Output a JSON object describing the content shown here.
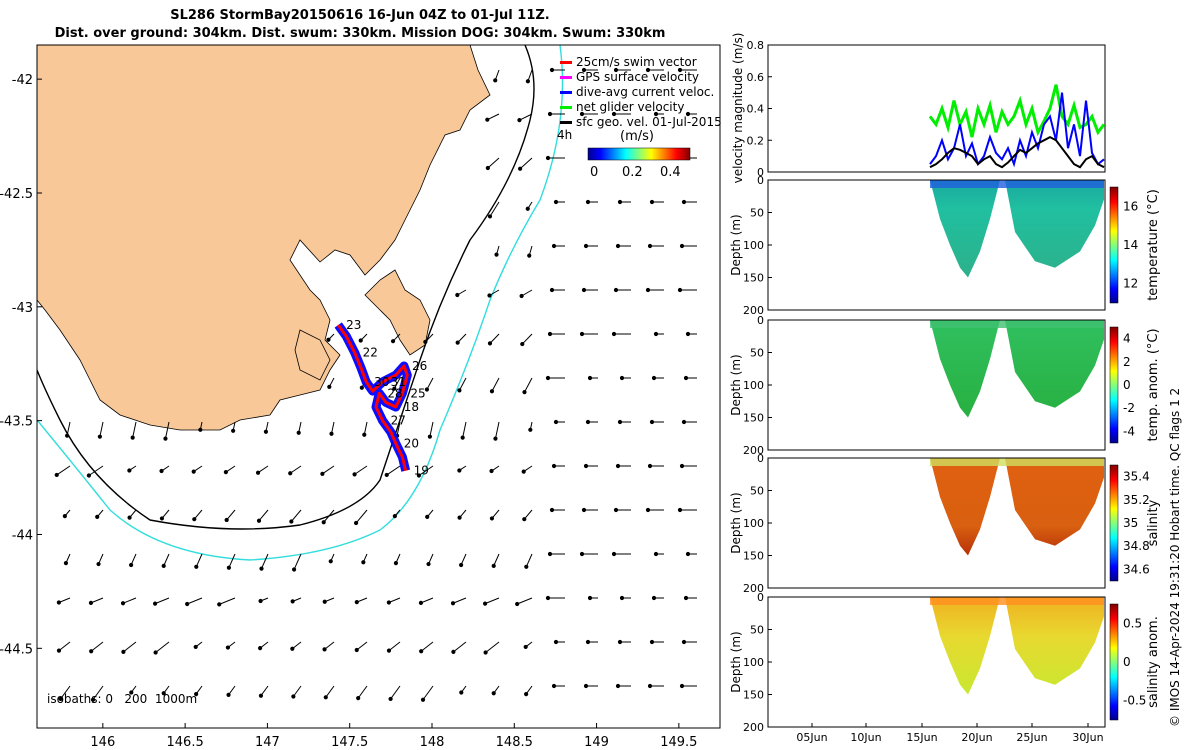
{
  "title_line1": "SL286 StormBay20150616 16-Jun 04Z to 01-Jul 11Z.",
  "title_line2": "Dist. over ground: 304km. Dist. swum: 330km. Mission DOG: 304km. Swum: 330km",
  "legend": {
    "items": [
      {
        "label": "25cm/s swim vector",
        "color": "#ff0000"
      },
      {
        "label": "GPS surface velocity",
        "color": "#ff00ff"
      },
      {
        "label": "dive-avg current veloc.",
        "color": "#0000ff"
      },
      {
        "label": "net glider velocity",
        "color": "#00ee00"
      },
      {
        "label": "sfc geo. vel. 01-Jul-2015",
        "color": "#000000"
      }
    ],
    "time_label": "4h",
    "colorbar_title": "(m/s)",
    "colorbar_ticks": [
      "0",
      "0.2",
      "0.4"
    ]
  },
  "isobaths_label": "isobaths: 0   200  1000m",
  "credit": "© IMOS 14-Apr-2024 19:31:20 Hobart time. QC flags 1  2",
  "colors": {
    "land": "#f8c898",
    "glider_track": "#ff0000",
    "current": "#0000ff",
    "isobath_200": "#000000",
    "isobath_1000": "#33dddd",
    "net_velocity": "#00ee00"
  },
  "chart_data": [
    {
      "type": "map",
      "x_ticks": [
        "146",
        "146.5",
        "147",
        "147.5",
        "148",
        "148.5",
        "149",
        "149.5"
      ],
      "y_ticks": [
        "-42",
        "-42.5",
        "-43",
        "-43.5",
        "-44",
        "-44.5"
      ],
      "xlim": [
        145.6,
        149.75
      ],
      "ylim": [
        -44.85,
        -41.85
      ],
      "track_labels": [
        "23",
        "22",
        "30",
        "31",
        "26",
        "25",
        "18",
        "28",
        "27",
        "20",
        "19"
      ],
      "track": [
        [
          147.43,
          -43.08
        ],
        [
          147.48,
          -43.13
        ],
        [
          147.53,
          -43.2
        ],
        [
          147.57,
          -43.27
        ],
        [
          147.6,
          -43.33
        ],
        [
          147.64,
          -43.37
        ],
        [
          147.7,
          -43.33
        ],
        [
          147.78,
          -43.3
        ],
        [
          147.83,
          -43.26
        ],
        [
          147.85,
          -43.3
        ],
        [
          147.82,
          -43.38
        ],
        [
          147.78,
          -43.44
        ],
        [
          147.72,
          -43.42
        ],
        [
          147.68,
          -43.38
        ],
        [
          147.66,
          -43.44
        ],
        [
          147.7,
          -43.5
        ],
        [
          147.75,
          -43.55
        ],
        [
          147.78,
          -43.6
        ],
        [
          147.82,
          -43.66
        ],
        [
          147.84,
          -43.72
        ]
      ]
    },
    {
      "type": "line",
      "ylabel": "velocity magnitude (m/s)",
      "ylim": [
        0,
        0.8
      ],
      "y_ticks": [
        "0",
        "0.2",
        "0.4",
        "0.6",
        "0.8"
      ],
      "series": [
        {
          "name": "net glider velocity",
          "values": [
            0.35,
            0.3,
            0.4,
            0.28,
            0.45,
            0.3,
            0.38,
            0.22,
            0.4,
            0.3,
            0.42,
            0.25,
            0.38,
            0.3,
            0.35,
            0.45,
            0.3,
            0.4,
            0.25,
            0.32,
            0.4,
            0.55,
            0.35,
            0.3,
            0.42,
            0.28,
            0.3,
            0.35,
            0.25,
            0.3
          ]
        },
        {
          "name": "dive-avg current veloc.",
          "values": [
            0.05,
            0.1,
            0.2,
            0.08,
            0.15,
            0.3,
            0.1,
            0.18,
            0.05,
            0.1,
            0.22,
            0.12,
            0.08,
            0.15,
            0.05,
            0.2,
            0.1,
            0.25,
            0.15,
            0.3,
            0.35,
            0.2,
            0.5,
            0.15,
            0.3,
            0.1,
            0.45,
            0.12,
            0.05,
            0.08
          ]
        },
        {
          "name": "sfc geo. vel.",
          "values": [
            0.03,
            0.05,
            0.08,
            0.12,
            0.15,
            0.14,
            0.12,
            0.1,
            0.05,
            0.08,
            0.1,
            0.05,
            0.03,
            0.06,
            0.1,
            0.14,
            0.12,
            0.15,
            0.18,
            0.2,
            0.22,
            0.2,
            0.15,
            0.1,
            0.05,
            0.03,
            0.08,
            0.1,
            0.05,
            0.03
          ]
        }
      ]
    },
    {
      "type": "heatmap",
      "ylabel": "Depth (m)",
      "colorbar_label": "temperature (°C)",
      "colorbar_ticks": [
        "12",
        "14",
        "16"
      ],
      "ylim": [
        200,
        0
      ],
      "y_ticks": [
        "0",
        "50",
        "100",
        "150",
        "200"
      ]
    },
    {
      "type": "heatmap",
      "ylabel": "Depth (m)",
      "colorbar_label": "temp. anom. (°C)",
      "colorbar_ticks": [
        "-4",
        "-2",
        "0",
        "2",
        "4"
      ],
      "ylim": [
        200,
        0
      ],
      "y_ticks": [
        "0",
        "50",
        "100",
        "150",
        "200"
      ]
    },
    {
      "type": "heatmap",
      "ylabel": "Depth (m)",
      "colorbar_label": "salinity",
      "colorbar_ticks": [
        "34.6",
        "34.8",
        "35",
        "35.2",
        "35.4"
      ],
      "ylim": [
        200,
        0
      ],
      "y_ticks": [
        "0",
        "50",
        "100",
        "150",
        "200"
      ]
    },
    {
      "type": "heatmap",
      "ylabel": "Depth (m)",
      "colorbar_label": "salinity anom.",
      "colorbar_ticks": [
        "-0.5",
        "0",
        "0.5"
      ],
      "ylim": [
        200,
        0
      ],
      "y_ticks": [
        "0",
        "50",
        "100",
        "150",
        "200"
      ],
      "x_ticks": [
        "05Jun",
        "10Jun",
        "15Jun",
        "20Jun",
        "25Jun",
        "30Jun"
      ]
    }
  ]
}
